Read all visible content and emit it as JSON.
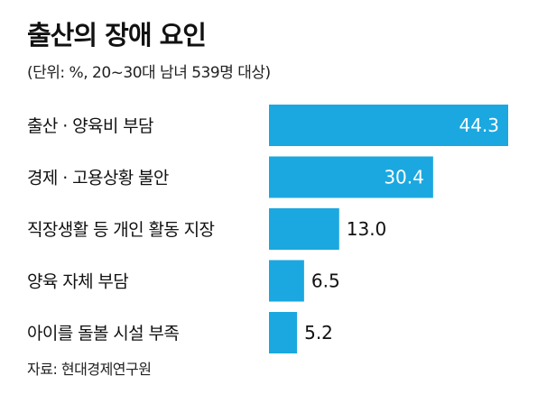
{
  "chart_data": {
    "type": "bar",
    "orientation": "horizontal",
    "title": "출산의 장애 요인",
    "subtitle": "(단위: %, 20~30대 남녀 539명 대상)",
    "categories": [
      "출산 · 양육비 부담",
      "경제 · 고용상황 불안",
      "직장생활 등 개인 활동 지장",
      "양육 자체 부담",
      "아이를 돌볼 시설 부족"
    ],
    "values": [
      44.3,
      30.4,
      13.0,
      6.5,
      5.2
    ],
    "value_labels": [
      "44.3",
      "30.4",
      "13.0",
      "6.5",
      "5.2"
    ],
    "xlim": [
      0,
      45
    ],
    "grid": false,
    "bar_color": "#1ba8e0",
    "source": "자료: 현대경제연구원"
  }
}
